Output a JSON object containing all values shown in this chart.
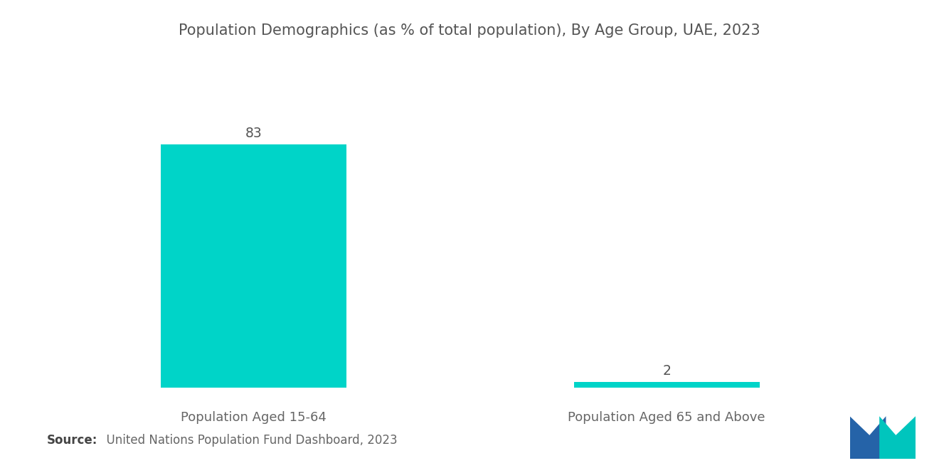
{
  "title": "Population Demographics (as % of total population), By Age Group, UAE, 2023",
  "categories": [
    "Population Aged 15-64",
    "Population Aged 65 and Above"
  ],
  "values": [
    83,
    2
  ],
  "bar_color": "#00D4C8",
  "background_color": "#ffffff",
  "title_fontsize": 15,
  "label_fontsize": 13,
  "value_fontsize": 13.5,
  "source_bold": "Source:",
  "source_normal": "  United Nations Population Fund Dashboard, 2023",
  "source_fontsize": 12,
  "ylim": [
    0,
    100
  ],
  "logo_blue": "#2563A8",
  "logo_teal": "#00C5BD"
}
